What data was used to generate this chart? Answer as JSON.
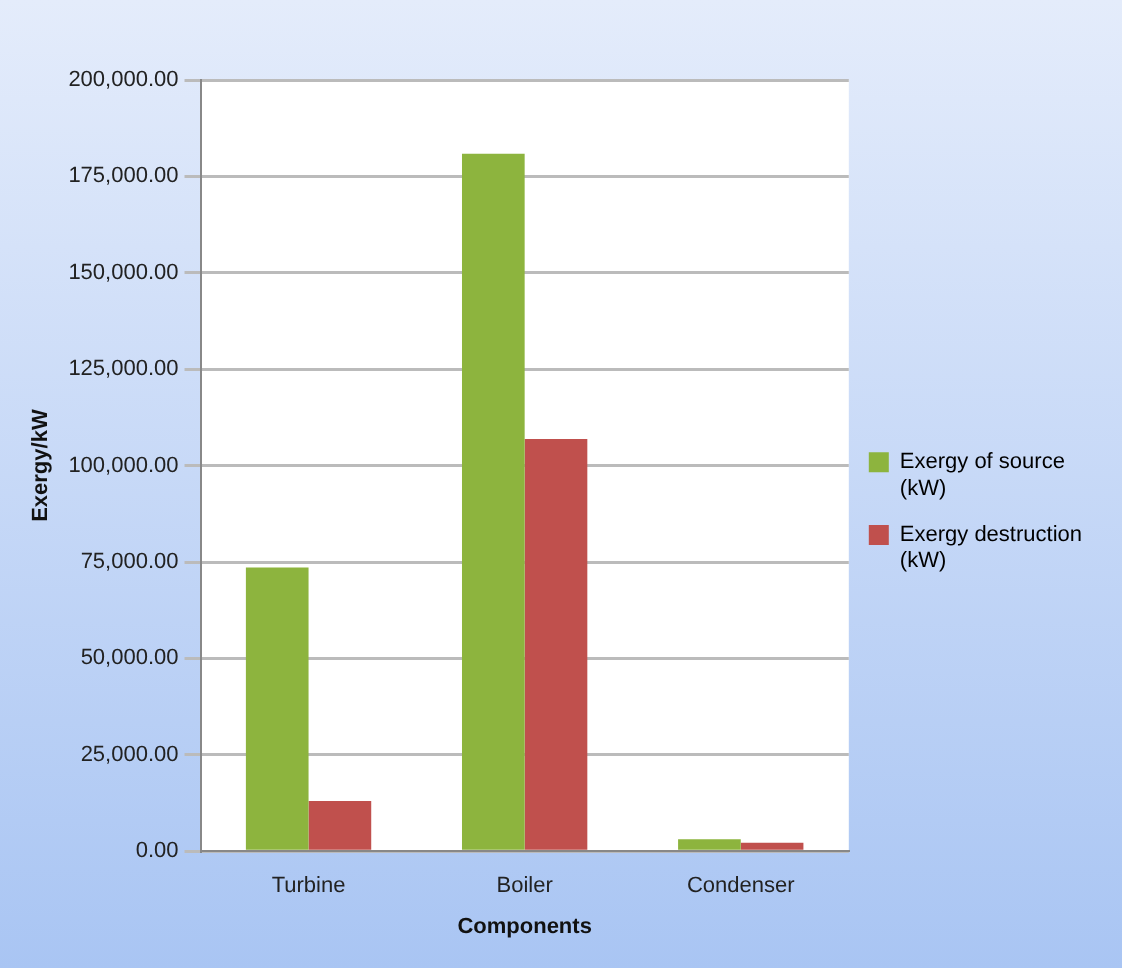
{
  "chart_data": {
    "type": "bar",
    "xlabel": "Components",
    "ylabel": "Exergy/kW",
    "categories": [
      "Turbine",
      "Boiler",
      "Condenser"
    ],
    "series": [
      {
        "name": "Exergy of source (kW)",
        "color": "#8db43e",
        "values": [
          73600,
          180900,
          3100
        ]
      },
      {
        "name": "Exergy destruction (kW)",
        "color": "#c0504d",
        "values": [
          13000,
          106900,
          2200
        ]
      }
    ],
    "ylim": [
      0,
      200000
    ],
    "yticks": [
      {
        "value": 0,
        "label": "0.00"
      },
      {
        "value": 25000,
        "label": "25,000.00"
      },
      {
        "value": 50000,
        "label": "50,000.00"
      },
      {
        "value": 75000,
        "label": "75,000.00"
      },
      {
        "value": 100000,
        "label": "100,000.00"
      },
      {
        "value": 125000,
        "label": "125,000.00"
      },
      {
        "value": 150000,
        "label": "150,000.00"
      },
      {
        "value": 175000,
        "label": "175,000.00"
      },
      {
        "value": 200000,
        "label": "200,000.00"
      }
    ],
    "grid": "y",
    "legend": "right"
  }
}
